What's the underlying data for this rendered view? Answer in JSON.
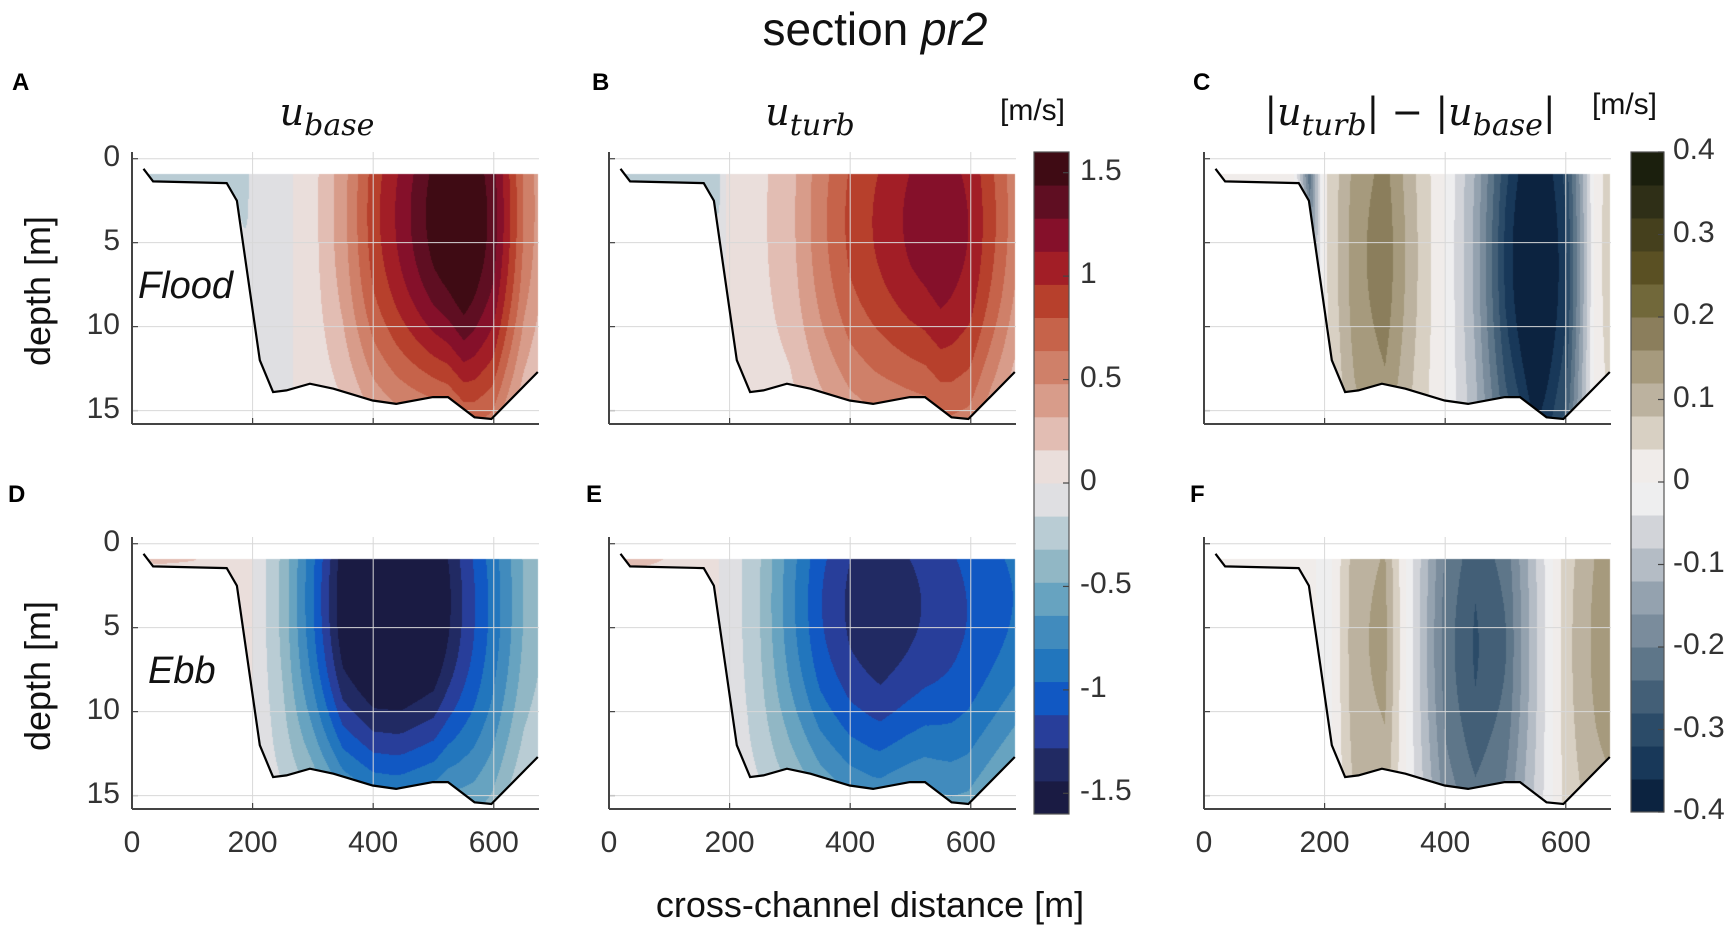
{
  "title": {
    "text": "section ",
    "italic": "pr2"
  },
  "xlabel": "cross-channel distance [m]",
  "ylabel": "depth [m]",
  "chart_data": {
    "type": "heatmap",
    "subtype": "filled-contour cross-sections",
    "x_label": "cross-channel distance [m]",
    "y_label": "depth [m]",
    "xlim": [
      0,
      675
    ],
    "ylim": [
      -0.4,
      15.8
    ],
    "x_ticks": [
      "0",
      "200",
      "400",
      "600"
    ],
    "x_tick_values": [
      0,
      200,
      400,
      600
    ],
    "y_ticks": [
      "0",
      "5",
      "10",
      "15"
    ],
    "y_tick_values": [
      0,
      5,
      10,
      15
    ],
    "grid": true,
    "data_top_depth": 0.9,
    "bathymetry": {
      "x": [
        19,
        35,
        157,
        174,
        212,
        234,
        256,
        295,
        334,
        399,
        438,
        499,
        524,
        568,
        596,
        673
      ],
      "depth": [
        0.6,
        1.35,
        1.45,
        2.5,
        12,
        13.9,
        13.8,
        13.4,
        13.7,
        14.4,
        14.6,
        14.2,
        14.2,
        15.4,
        15.5,
        12.7
      ]
    },
    "profile_x": [
      0,
      50,
      100,
      150,
      175,
      200,
      250,
      300,
      350,
      400,
      450,
      500,
      550,
      600,
      650,
      675
    ],
    "panels": [
      {
        "letter": "A",
        "var": "u",
        "sub": "base",
        "tide": "Flood",
        "colorbar": 0,
        "depth_falloff": 0.55,
        "surface_values": [
          -0.35,
          -0.35,
          -0.35,
          -0.35,
          -0.3,
          -0.1,
          -0.05,
          0.1,
          0.4,
          0.85,
          1.15,
          1.45,
          1.65,
          1.3,
          0.6,
          0.4
        ]
      },
      {
        "letter": "B",
        "var": "u",
        "sub": "turb",
        "tide": "",
        "colorbar": 0,
        "depth_falloff": 0.45,
        "surface_values": [
          -0.35,
          -0.35,
          -0.35,
          -0.3,
          -0.3,
          0.1,
          0.12,
          0.25,
          0.55,
          0.8,
          0.95,
          1.1,
          1.2,
          1.05,
          0.7,
          0.5
        ]
      },
      {
        "letter": "C",
        "var": "|u",
        "sub": "turb",
        "mid": "| − |u",
        "sub2": "base",
        "end": "|",
        "tide": "",
        "colorbar": 1,
        "depth_falloff": 0.1,
        "surface_values": [
          0.02,
          0.02,
          0.02,
          0.0,
          -0.2,
          0.03,
          0.13,
          0.17,
          0.08,
          0.0,
          -0.12,
          -0.3,
          -0.42,
          -0.3,
          0.02,
          0.06
        ]
      },
      {
        "letter": "D",
        "var": "",
        "sub": "",
        "tide": "Ebb",
        "colorbar": 0,
        "depth_falloff": 0.5,
        "surface_values": [
          0.25,
          0.25,
          0.2,
          0.1,
          0.05,
          0.0,
          -0.35,
          -0.9,
          -1.5,
          -1.7,
          -1.7,
          -1.6,
          -1.2,
          -0.85,
          -0.45,
          -0.35
        ]
      },
      {
        "letter": "E",
        "var": "",
        "sub": "",
        "tide": "",
        "colorbar": 0,
        "depth_falloff": 0.45,
        "surface_values": [
          0.3,
          0.3,
          0.15,
          0.05,
          0.02,
          -0.05,
          -0.3,
          -0.7,
          -1.05,
          -1.25,
          -1.35,
          -1.25,
          -1.15,
          -1.05,
          -0.95,
          -0.9
        ]
      },
      {
        "letter": "F",
        "var": "",
        "sub": "",
        "tide": "",
        "colorbar": 1,
        "depth_falloff": 0.1,
        "surface_values": [
          0.03,
          0.02,
          0.02,
          0.02,
          0.02,
          -0.03,
          0.1,
          0.12,
          -0.05,
          -0.2,
          -0.26,
          -0.22,
          -0.08,
          0.06,
          0.12,
          0.14
        ]
      }
    ],
    "colorbars": [
      {
        "unit": "[m/s]",
        "range": [
          -1.6,
          1.6
        ],
        "ticks": [
          "-1.5",
          "-1",
          "-0.5",
          "0",
          "0.5",
          "1",
          "1.5"
        ],
        "tick_values": [
          -1.5,
          -1,
          -0.5,
          0,
          0.5,
          1,
          1.5
        ],
        "colors": [
          "#1a1b43",
          "#212a63",
          "#283e9a",
          "#1158c3",
          "#2276bd",
          "#418bbd",
          "#67a3c0",
          "#91b7c5",
          "#b9ccd4",
          "#dfdfe2",
          "#eadedb",
          "#e2bdb3",
          "#d89c8a",
          "#cf8069",
          "#c6634a",
          "#b7402c",
          "#a21e26",
          "#85102a",
          "#5f0e22",
          "#3f0b14"
        ]
      },
      {
        "unit": "[m/s]",
        "range": [
          -0.4,
          0.4
        ],
        "ticks": [
          "-0.4",
          "-0.3",
          "-0.2",
          "-0.1",
          "0",
          "0.1",
          "0.2",
          "0.3",
          "0.4"
        ],
        "tick_values": [
          -0.4,
          -0.3,
          -0.2,
          -0.1,
          0,
          0.1,
          0.2,
          0.3,
          0.4
        ],
        "colors": [
          "#0c2340",
          "#183859",
          "#2b4b68",
          "#435f77",
          "#5e7689",
          "#7a8c9c",
          "#94a2af",
          "#b4bcc5",
          "#d2d4d9",
          "#eeeeef",
          "#f0ecea",
          "#d8d0c3",
          "#bcb29f",
          "#a69a7d",
          "#8b7e5c",
          "#71683a",
          "#5a5023",
          "#45401d",
          "#2f2f17",
          "#1b1f0d"
        ]
      }
    ]
  }
}
